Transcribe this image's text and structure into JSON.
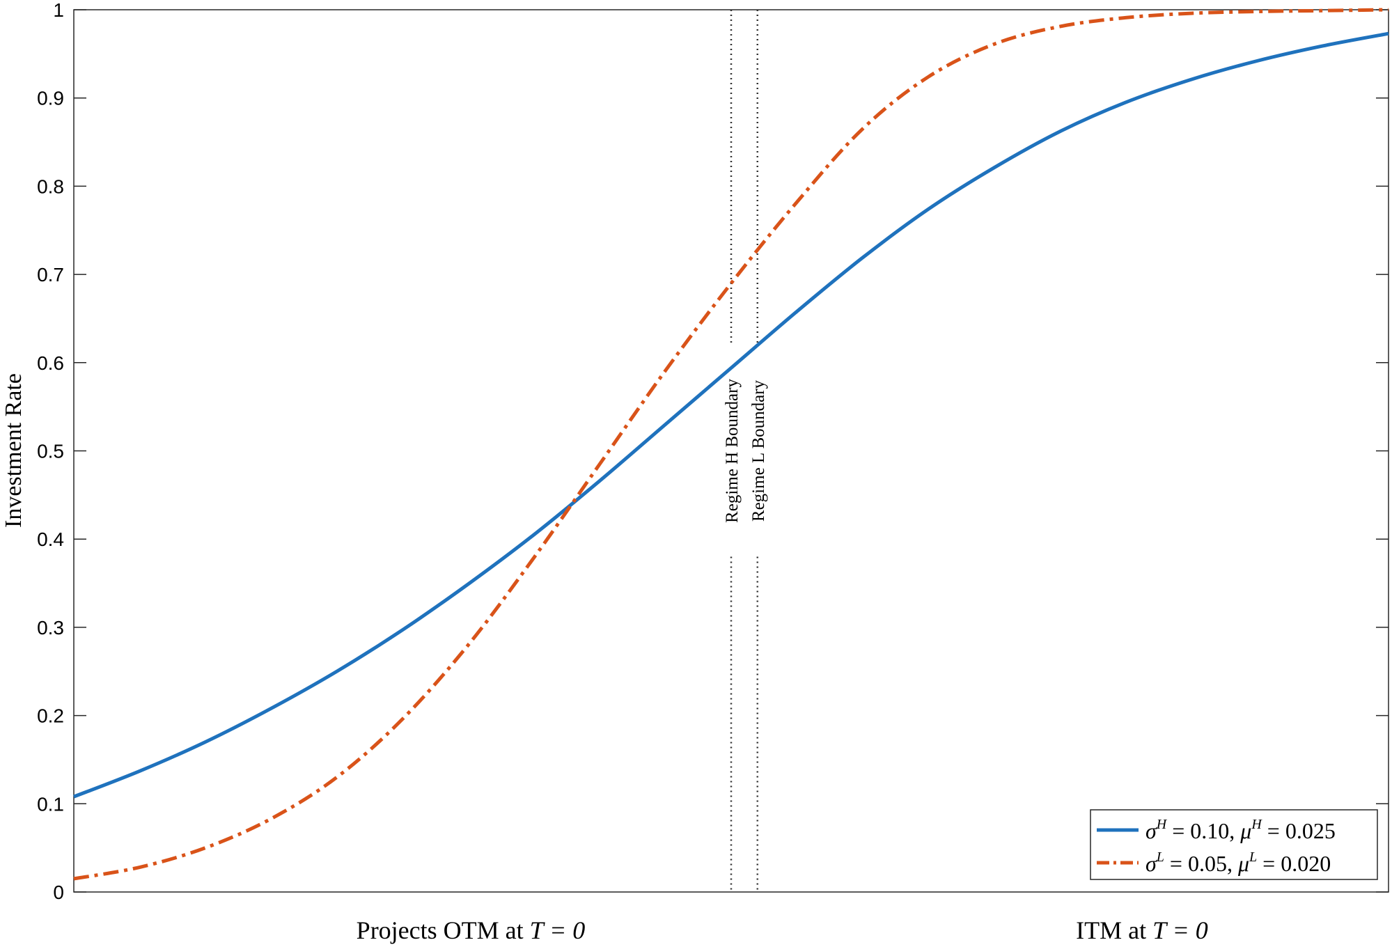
{
  "chart_data": {
    "type": "line",
    "ylabel": "Investment Rate",
    "ylim": [
      0,
      1
    ],
    "xlim": [
      0,
      1
    ],
    "yticks": [
      "0",
      "0.1",
      "0.2",
      "0.3",
      "0.4",
      "0.5",
      "0.6",
      "0.7",
      "0.8",
      "0.9",
      "1"
    ],
    "x_annotations": {
      "left": "Projects OTM at ",
      "right": "ITM at ",
      "math": "T = 0"
    },
    "boundaries": [
      {
        "label": "Regime H Boundary",
        "x": 0.5
      },
      {
        "label": "Regime L Boundary",
        "x": 0.52
      }
    ],
    "series": [
      {
        "name": "σH = 0.10, μH = 0.025",
        "greek1": "σ",
        "sup1": "H",
        "val1": " = 0.10,  ",
        "greek2": "μ",
        "sup2": "H",
        "val2": " = 0.025",
        "color": "#1f72bd",
        "style": "solid",
        "x": [
          0,
          0.05,
          0.1,
          0.15,
          0.2,
          0.25,
          0.3,
          0.35,
          0.4,
          0.45,
          0.5,
          0.55,
          0.6,
          0.65,
          0.7,
          0.75,
          0.8,
          0.85,
          0.9,
          0.95,
          1.0
        ],
        "values": [
          0.108,
          0.137,
          0.17,
          0.208,
          0.25,
          0.297,
          0.349,
          0.405,
          0.466,
          0.53,
          0.594,
          0.658,
          0.719,
          0.774,
          0.821,
          0.862,
          0.895,
          0.921,
          0.942,
          0.959,
          0.973
        ]
      },
      {
        "name": "σL = 0.05, μL = 0.020",
        "greek1": "σ",
        "sup1": "L",
        "val1": " = 0.05,  ",
        "greek2": "μ",
        "sup2": "L",
        "val2": " = 0.020",
        "color": "#d95319",
        "style": "dashdot",
        "x": [
          0,
          0.05,
          0.1,
          0.15,
          0.2,
          0.25,
          0.3,
          0.35,
          0.4,
          0.45,
          0.5,
          0.55,
          0.6,
          0.65,
          0.7,
          0.75,
          0.8,
          0.85,
          0.9,
          0.95,
          1.0
        ],
        "values": [
          0.015,
          0.028,
          0.05,
          0.083,
          0.13,
          0.196,
          0.28,
          0.379,
          0.485,
          0.591,
          0.69,
          0.782,
          0.865,
          0.924,
          0.961,
          0.981,
          0.991,
          0.996,
          0.998,
          0.999,
          1.0
        ]
      }
    ]
  }
}
